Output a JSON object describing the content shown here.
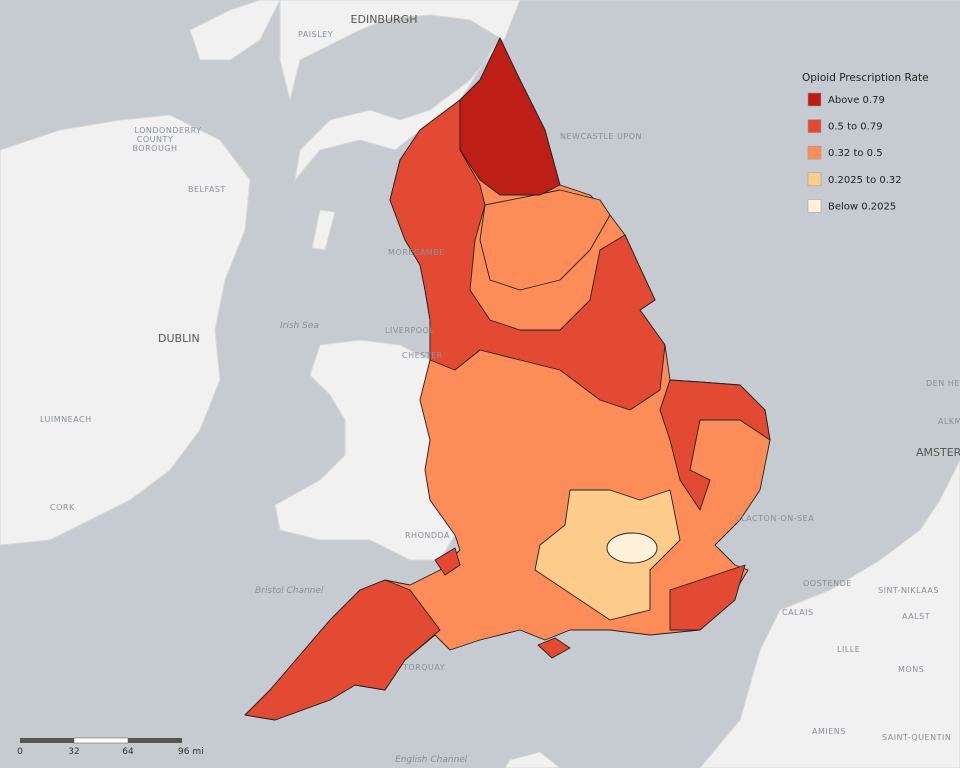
{
  "legend": {
    "title": "Opioid Prescription Rate",
    "items": [
      {
        "label": "Above 0.79",
        "color": "#bd1e16"
      },
      {
        "label": "0.5 to 0.79",
        "color": "#e34a33"
      },
      {
        "label": "0.32 to 0.5",
        "color": "#fc8d59"
      },
      {
        "label": "0.2025 to 0.32",
        "color": "#fdcc8a"
      },
      {
        "label": "Below 0.2025",
        "color": "#fef0d9"
      }
    ]
  },
  "places": [
    "EDINBURGH",
    "PAISLEY",
    "LONDONDERRY",
    "COUNTY",
    "BOROUGH",
    "BELFAST",
    "DUBLIN",
    "LUIMNEACH",
    "CORK",
    "Irish Sea",
    "MORECAMBE",
    "LIVERPOOL",
    "CHESTER",
    "NEWCASTLE UPON",
    "RHONDDA",
    "Bristol Channel",
    "TORQUAY",
    "English Channel",
    "CLACTON-ON-SEA",
    "CALAIS",
    "OOSTENDE",
    "SINT-NIKLAAS",
    "AALST",
    "LILLE",
    "MONS",
    "AMIENS",
    "SAINT-QUENTIN",
    "AMSTER",
    "DEN HE",
    "ALKM"
  ],
  "scale": {
    "labels": [
      "0",
      "32",
      "64",
      "96 mi"
    ]
  }
}
